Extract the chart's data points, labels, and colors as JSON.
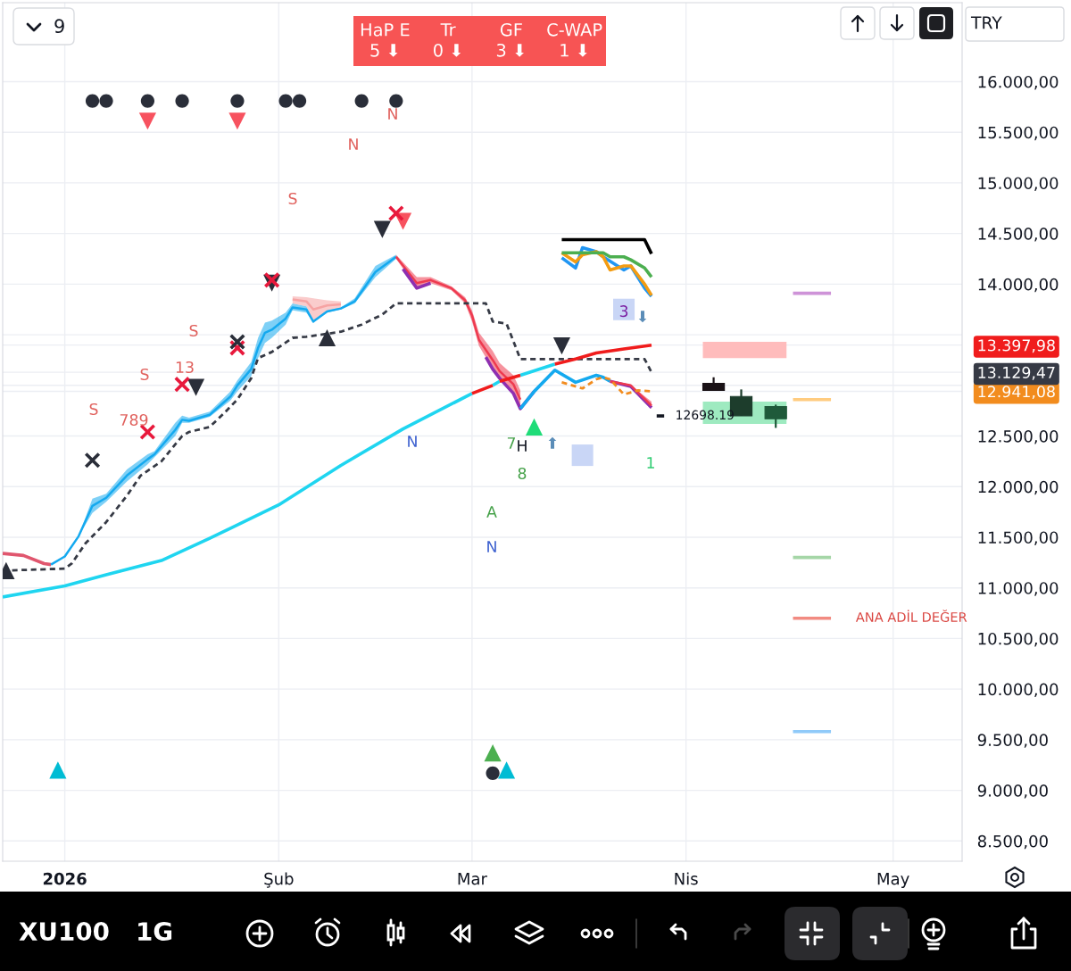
{
  "chart_data": [
    {
      "type": "line",
      "xlim": [
        "2025-12-23",
        "2026-05-11"
      ],
      "xticks": [
        {
          "value": "2026-01-01",
          "label": "2026"
        },
        {
          "value": "2026-02-01",
          "label": "Şub"
        },
        {
          "value": "2026-03-01",
          "label": "Mar"
        },
        {
          "value": "2026-04-01",
          "label": "Nis"
        },
        {
          "value": "2026-05-01",
          "label": "May"
        }
      ],
      "ylim": [
        8300,
        16780
      ],
      "yticks": [
        {
          "value": 8500,
          "label": "8.500,00"
        },
        {
          "value": 9000,
          "label": "9.000,00"
        },
        {
          "value": 9500,
          "label": "9.500,00"
        },
        {
          "value": 10000,
          "label": "10.000,00"
        },
        {
          "value": 10500,
          "label": "10.500,00"
        },
        {
          "value": 11000,
          "label": "11.000,00"
        },
        {
          "value": 11500,
          "label": "11.500,00"
        },
        {
          "value": 12000,
          "label": "12.000,00"
        },
        {
          "value": 12500,
          "label": "12.500,00"
        },
        {
          "value": 12941.08,
          "label": "12.941,08"
        },
        {
          "value": 13000,
          "label": null
        },
        {
          "value": 13129.47,
          "label": "13.129,47"
        },
        {
          "value": 13397.98,
          "label": "13.397,98"
        },
        {
          "value": 13500,
          "label": null
        },
        {
          "value": 14000,
          "label": "14.000,00"
        },
        {
          "value": 14500,
          "label": "14.500,00"
        },
        {
          "value": 15000,
          "label": "15.000,00"
        },
        {
          "value": 15500,
          "label": "15.500,00"
        },
        {
          "value": 16000,
          "label": "16.000,00"
        }
      ],
      "grid": true,
      "series": [
        {
          "type": "line",
          "color": "#e0566e",
          "x": [
            "2025-12-23",
            "2025-12-26",
            "2025-12-29",
            "2025-12-30"
          ],
          "values": [
            11340,
            11320,
            11240,
            11230
          ]
        },
        {
          "type": "line",
          "color": "#14a9ef",
          "x": [
            "2025-12-30",
            "2026-01-01",
            "2026-01-03",
            "2026-01-05",
            "2026-01-07",
            "2026-01-10",
            "2026-01-13",
            "2026-01-14",
            "2026-01-17",
            "2026-01-18",
            "2026-01-19",
            "2026-01-22",
            "2026-01-25",
            "2026-01-26",
            "2026-01-28",
            "2026-01-29",
            "2026-01-30",
            "2026-01-31",
            "2026-02-02",
            "2026-02-03",
            "2026-02-05",
            "2026-02-06",
            "2026-02-08",
            "2026-02-10",
            "2026-02-12",
            "2026-02-15",
            "2026-02-18"
          ],
          "values": [
            11230,
            11310,
            11510,
            11810,
            11890,
            12110,
            12270,
            12320,
            12560,
            12660,
            12650,
            12710,
            12890,
            13000,
            13160,
            13370,
            13520,
            13550,
            13660,
            13770,
            13750,
            13630,
            13730,
            13760,
            13830,
            14120,
            14270
          ],
          "lower": [
            11230,
            11310,
            11510,
            11740,
            11850,
            12050,
            12220,
            12290,
            12500,
            12630,
            12630,
            12690,
            12850,
            12940,
            13090,
            13270,
            13420,
            13470,
            13600,
            13740,
            13720,
            13620,
            13720,
            13750,
            13810,
            14070,
            14250
          ],
          "upper": [
            11230,
            11310,
            11510,
            11880,
            11930,
            12170,
            12320,
            12350,
            12630,
            12700,
            12680,
            12740,
            12940,
            13050,
            13230,
            13470,
            13620,
            13640,
            13720,
            13810,
            13780,
            13640,
            13740,
            13770,
            13860,
            14180,
            14290
          ]
        },
        {
          "type": "line",
          "color": "#f6a3a3",
          "x": [
            "2026-02-03",
            "2026-02-05",
            "2026-02-06",
            "2026-02-08",
            "2026-02-10"
          ],
          "values": [
            13850,
            13830,
            13750,
            13790,
            13800
          ],
          "lower": [
            13810,
            13780,
            13640,
            13740,
            13770
          ],
          "upper": [
            13880,
            13870,
            13860,
            13840,
            13830
          ]
        },
        {
          "type": "line",
          "color": "#ee3a4f",
          "x": [
            "2026-02-18",
            "2026-02-21",
            "2026-02-23",
            "2026-02-26",
            "2026-02-28",
            "2026-03-01",
            "2026-03-02",
            "2026-03-04",
            "2026-03-05",
            "2026-03-07",
            "2026-03-08"
          ],
          "values": [
            14270,
            14010,
            14040,
            13960,
            13840,
            13690,
            13450,
            13250,
            13140,
            13010,
            12860
          ],
          "lower": [
            14250,
            13960,
            14010,
            13940,
            13810,
            13630,
            13390,
            13160,
            13070,
            12920,
            12770
          ],
          "upper": [
            14290,
            14070,
            14070,
            13980,
            13870,
            13740,
            13520,
            13340,
            13220,
            13100,
            12950
          ]
        },
        {
          "type": "line",
          "color": "#8e2fb0",
          "x": [
            "2026-02-19",
            "2026-02-21",
            "2026-02-23",
            "2026-02-25",
            "2026-03-03",
            "2026-03-04",
            "2026-03-05",
            "2026-03-07",
            "2026-03-08",
            "2026-03-10",
            "2026-03-19",
            "2026-03-21",
            "2026-03-24",
            "2026-03-27"
          ],
          "values": [
            14150,
            13960,
            14010,
            null,
            13280,
            13160,
            13070,
            12920,
            12770,
            12940,
            null,
            13040,
            12990,
            12780
          ]
        },
        {
          "type": "line",
          "color": "#14a9ef",
          "x": [
            "2026-03-08",
            "2026-03-10",
            "2026-03-13",
            "2026-03-16",
            "2026-03-19",
            "2026-03-20",
            "2026-03-21"
          ],
          "values": [
            12770,
            12940,
            13150,
            13030,
            13100,
            13080,
            13040
          ]
        },
        {
          "type": "line",
          "color": "#ee3a4f",
          "x": [
            "2026-03-21",
            "2026-03-24",
            "2026-03-27"
          ],
          "values": [
            13040,
            13000,
            12800
          ],
          "lower": [
            13040,
            12990,
            12770
          ],
          "upper": [
            13040,
            13000,
            12840
          ]
        },
        {
          "type": "line",
          "color": "#363a45",
          "line_style": "dashed",
          "x": [
            "2025-12-23",
            "2026-01-01",
            "2026-01-02",
            "2026-01-04",
            "2026-01-07",
            "2026-01-10",
            "2026-01-12",
            "2026-01-15",
            "2026-01-18",
            "2026-01-19",
            "2026-01-22",
            "2026-01-24",
            "2026-01-26",
            "2026-01-28",
            "2026-01-29",
            "2026-01-31",
            "2026-02-03",
            "2026-02-05",
            "2026-02-10",
            "2026-02-13",
            "2026-02-16",
            "2026-02-18",
            "2026-03-03",
            "2026-03-04",
            "2026-03-06",
            "2026-03-08",
            "2026-03-26",
            "2026-03-27"
          ],
          "values": [
            11170,
            11190,
            11240,
            11440,
            11650,
            11910,
            12110,
            12250,
            12500,
            12540,
            12590,
            12720,
            12860,
            13070,
            13270,
            13330,
            13470,
            13480,
            13530,
            13600,
            13700,
            13810,
            13810,
            13630,
            13610,
            13260,
            13260,
            13129.47
          ]
        },
        {
          "type": "line",
          "color": "#1fd5f0",
          "x": [
            "2025-12-23",
            "2026-01-01",
            "2026-01-07",
            "2026-01-15",
            "2026-01-22",
            "2026-02-01",
            "2026-02-10",
            "2026-02-19",
            "2026-03-01",
            "2026-03-02",
            "2026-03-04",
            "2026-03-05",
            "2026-03-06",
            "2026-03-08",
            "2026-03-13"
          ],
          "values": [
            10910,
            11020,
            11130,
            11270,
            11490,
            11820,
            12210,
            12570,
            12920,
            null,
            13000,
            13040,
            null,
            13100,
            13210
          ]
        },
        {
          "type": "line",
          "color": "#f01c1c",
          "x": [
            "2026-03-01",
            "2026-03-04",
            "2026-03-04T12:00",
            "2026-03-05",
            "2026-03-08",
            "2026-03-10",
            "2026-03-13",
            "2026-03-16",
            "2026-03-19",
            "2026-03-23",
            "2026-03-27"
          ],
          "values": [
            12920,
            13000,
            null,
            13040,
            13100,
            null,
            13210,
            13260,
            13320,
            13360,
            13397.98
          ]
        },
        {
          "type": "line",
          "color": "#f28c1e",
          "line_style": "dashed",
          "x": [
            "2026-03-14",
            "2026-03-17",
            "2026-03-19",
            "2026-03-20",
            "2026-03-21",
            "2026-03-23",
            "2026-03-25",
            "2026-03-27"
          ],
          "values": [
            13030,
            12970,
            13060,
            13080,
            13060,
            12910,
            12950,
            12941.08
          ]
        },
        {
          "type": "line",
          "color": "#000000",
          "x": [
            "2026-03-14",
            "2026-03-26",
            "2026-03-27"
          ],
          "values": [
            14440,
            14440,
            14300
          ]
        },
        {
          "type": "line",
          "color": "#2196f3",
          "x": [
            "2026-03-14",
            "2026-03-16",
            "2026-03-17",
            "2026-03-19",
            "2026-03-20",
            "2026-03-23",
            "2026-03-24",
            "2026-03-26",
            "2026-03-27"
          ],
          "values": [
            14260,
            14160,
            14360,
            14320,
            14270,
            14140,
            14180,
            13960,
            13880
          ]
        },
        {
          "type": "line",
          "color": "#f39c12",
          "x": [
            "2026-03-14",
            "2026-03-16",
            "2026-03-17",
            "2026-03-19",
            "2026-03-20",
            "2026-03-21",
            "2026-03-23",
            "2026-03-24",
            "2026-03-26",
            "2026-03-27"
          ],
          "values": [
            14310,
            14220,
            14290,
            14320,
            14270,
            14140,
            14180,
            14180,
            14000,
            13890
          ]
        },
        {
          "type": "line",
          "color": "#4caf50",
          "x": [
            "2026-03-14",
            "2026-03-17",
            "2026-03-20",
            "2026-03-21",
            "2026-03-23",
            "2026-03-24",
            "2026-03-26",
            "2026-03-27"
          ],
          "values": [
            14310,
            14310,
            14310,
            14270,
            14270,
            14240,
            14160,
            14070
          ]
        },
        {
          "type": "line",
          "color": "#131722",
          "x": [
            "2026-03-27T18:00",
            "2026-03-28T20:00"
          ],
          "values": [
            12698.19,
            12698.19
          ],
          "value_labels": [
            null,
            "12698.19"
          ]
        },
        {
          "type": "line",
          "color": "#ce93d8",
          "x": [
            "2026-04-16T12:00",
            "2026-04-22"
          ],
          "values": [
            13910,
            13910
          ]
        },
        {
          "type": "line",
          "color": "#ffcc80",
          "x": [
            "2026-04-16T12:00",
            "2026-04-22"
          ],
          "values": [
            12860,
            12860
          ]
        },
        {
          "type": "line",
          "color": "#a5d6a7",
          "x": [
            "2026-04-16T12:00",
            "2026-04-22"
          ],
          "values": [
            11300,
            11300
          ]
        },
        {
          "type": "line",
          "name": "ANA ADİL DEĞER",
          "color": "#f28b82",
          "x": [
            "2026-04-16T12:00",
            "2026-04-22"
          ],
          "values": [
            10700,
            10700
          ]
        },
        {
          "type": "line",
          "color": "#90caf9",
          "x": [
            "2026-04-16T12:00",
            "2026-04-22"
          ],
          "values": [
            9580,
            9580
          ]
        },
        {
          "type": "scatter",
          "marker": "circle",
          "color": "#2a2e39",
          "x": [
            "2026-01-05",
            "2026-01-07",
            "2026-01-13",
            "2026-01-18",
            "2026-01-26",
            "2026-02-02",
            "2026-02-04",
            "2026-02-13",
            "2026-02-18",
            "2026-03-04"
          ],
          "values": [
            15810,
            15810,
            15810,
            15810,
            15810,
            15810,
            15810,
            15810,
            15810,
            9170
          ]
        },
        {
          "type": "scatter",
          "marker": "triangle_down",
          "color": "#f7525f",
          "x": [
            "2026-01-13",
            "2026-01-26",
            "2026-02-19"
          ],
          "values": [
            15610,
            15610,
            14620
          ]
        },
        {
          "type": "scatter",
          "marker": "triangle_down",
          "color": "#2a2e39",
          "x": [
            "2026-01-20",
            "2026-01-31",
            "2026-02-16",
            "2026-03-14"
          ],
          "values": [
            12980,
            14010,
            14540,
            13390
          ]
        },
        {
          "type": "scatter",
          "marker": "triangle",
          "color": "#2a2e39",
          "x": [
            "2025-12-23T12:00",
            "2026-02-08"
          ],
          "values": [
            11170,
            13470
          ]
        },
        {
          "type": "scatter",
          "marker": "cross",
          "color": "#e8193c",
          "x": [
            "2026-01-13",
            "2026-01-18",
            "2026-01-26",
            "2026-01-31",
            "2026-02-18"
          ],
          "values": [
            12540,
            13010,
            13370,
            14040,
            14700
          ]
        },
        {
          "type": "scatter",
          "marker": "cross",
          "color": "#2a2e39",
          "x": [
            "2026-01-05",
            "2026-01-26"
          ],
          "values": [
            12260,
            13430
          ]
        },
        {
          "type": "scatter",
          "marker": "triangle",
          "color": "#00bcd4",
          "x": [
            "2025-12-31",
            "2026-03-06"
          ],
          "values": [
            9200,
            9200
          ]
        },
        {
          "type": "scatter",
          "marker": "triangle",
          "color": "#4caf50",
          "x": [
            "2026-03-04"
          ],
          "values": [
            9370
          ]
        },
        {
          "type": "scatter",
          "marker": "triangle",
          "color": "#1fdc78",
          "x": [
            "2026-03-10"
          ],
          "values": [
            12590
          ]
        },
        {
          "type": "scatter",
          "marker": "square",
          "color": "#c9d6f6",
          "x": [
            "2026-03-17",
            "2026-03-23"
          ],
          "values": [
            12310,
            13750
          ]
        },
        {
          "type": "candlestick",
          "x": [
            "2026-04-05",
            "2026-04-09",
            "2026-04-14"
          ],
          "ohlc": [
            [
              13020,
              13080,
              12950,
              12950
            ],
            [
              12890,
              12960,
              12700,
              12700
            ],
            [
              12790,
              12810,
              12580,
              12670
            ]
          ],
          "colors": [
            "#1a1216",
            "#1d3d2c",
            "#1f5a3a"
          ]
        }
      ],
      "bands": [
        {
          "axis": "y",
          "from": 13270,
          "to": 13430,
          "color": "#ffbcbc"
        },
        {
          "axis": "y",
          "from": 12620,
          "to": 12840,
          "color": "#9eeac0"
        }
      ],
      "annotations": [
        "S",
        "789",
        "S",
        "13",
        "S",
        "S",
        "N",
        "N",
        "N",
        "A",
        "N",
        "7",
        "H",
        "8",
        "⬆",
        "⬇",
        "1",
        {
          "text": "3",
          "x": "2026-03-23",
          "y": 13720
        }
      ]
    },
    {
      "type": "other",
      "color": "#f75454",
      "annotations": [
        "HaP E",
        "Tr",
        "GF",
        "C-WAP",
        "5 ⬇",
        "0 ⬇",
        "3 ⬇",
        "1 ⬇"
      ]
    },
    {
      "type": "other",
      "annotations": [
        "9",
        "TRY",
        "XU100",
        "1G"
      ]
    }
  ]
}
